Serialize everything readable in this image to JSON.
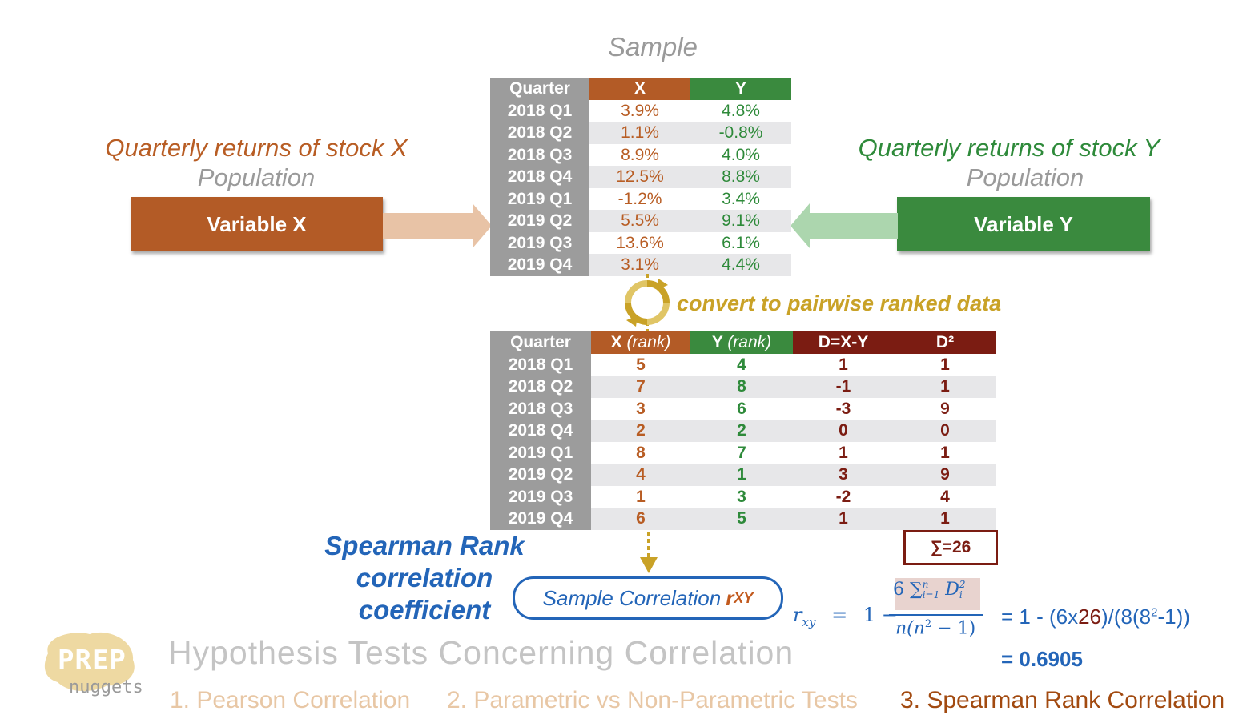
{
  "sample_title": "Sample",
  "stock_x": {
    "label": "Quarterly returns of stock X",
    "population": "Population",
    "variable": "Variable X"
  },
  "stock_y": {
    "label": "Quarterly returns of stock Y",
    "population": "Population",
    "variable": "Variable Y"
  },
  "sample_table": {
    "headers": [
      "Quarter",
      "X",
      "Y"
    ],
    "rows": [
      [
        "2018 Q1",
        "3.9%",
        "4.8%"
      ],
      [
        "2018 Q2",
        "1.1%",
        "-0.8%"
      ],
      [
        "2018 Q3",
        "8.9%",
        "4.0%"
      ],
      [
        "2018 Q4",
        "12.5%",
        "8.8%"
      ],
      [
        "2019 Q1",
        "-1.2%",
        "3.4%"
      ],
      [
        "2019 Q2",
        "5.5%",
        "9.1%"
      ],
      [
        "2019 Q3",
        "13.6%",
        "6.1%"
      ],
      [
        "2019 Q4",
        "3.1%",
        "4.4%"
      ]
    ]
  },
  "convert_label": "convert to pairwise ranked data",
  "rank_table": {
    "headers": [
      "Quarter",
      "X",
      "(rank)",
      "Y",
      "(rank)",
      "D=X-Y",
      "D²"
    ],
    "rows": [
      [
        "2018 Q1",
        "5",
        "4",
        "1",
        "1"
      ],
      [
        "2018 Q2",
        "7",
        "8",
        "-1",
        "1"
      ],
      [
        "2018 Q3",
        "3",
        "6",
        "-3",
        "9"
      ],
      [
        "2018 Q4",
        "2",
        "2",
        "0",
        "0"
      ],
      [
        "2019 Q1",
        "8",
        "7",
        "1",
        "1"
      ],
      [
        "2019 Q2",
        "4",
        "1",
        "3",
        "9"
      ],
      [
        "2019 Q3",
        "1",
        "3",
        "-2",
        "4"
      ],
      [
        "2019 Q4",
        "6",
        "5",
        "1",
        "1"
      ]
    ]
  },
  "sum_label": "∑=26",
  "spearman_label": [
    "Spearman Rank",
    "correlation",
    "coefficient"
  ],
  "sample_corr": {
    "text": "Sample Correlation ",
    "symbol": "r",
    "sub": "XY"
  },
  "formula": {
    "lhs": "r",
    "lhs_sub": "xy",
    "eq": "=",
    "one": "1 −",
    "num": "6 ∑",
    "num_sup": "n",
    "num_sub": "i=1",
    "num_var": "D",
    "num_var_sup": "2",
    "num_var_sub": "i",
    "den": "n(n",
    "den_sup": "2",
    "den_end": " − 1)"
  },
  "calc": {
    "line1_a": "= 1 - (6x",
    "line1_b": "26",
    "line1_c": ")/(8(8",
    "line1_sup": "2",
    "line1_d": "-1))",
    "line2": "= 0.6905"
  },
  "footer": {
    "logo_top": "PREP",
    "logo_bottom": "nuggets",
    "title": "Hypothesis Tests Concerning Correlation",
    "tabs": [
      "1. Pearson Correlation",
      "2. Parametric vs Non-Parametric Tests",
      "3. Spearman Rank Correlation"
    ]
  },
  "colors": {
    "x": "#b85d24",
    "y": "#2e8a3a",
    "d": "#7b1c12",
    "accent_blue": "#2365b8",
    "gold": "#c9a227"
  }
}
